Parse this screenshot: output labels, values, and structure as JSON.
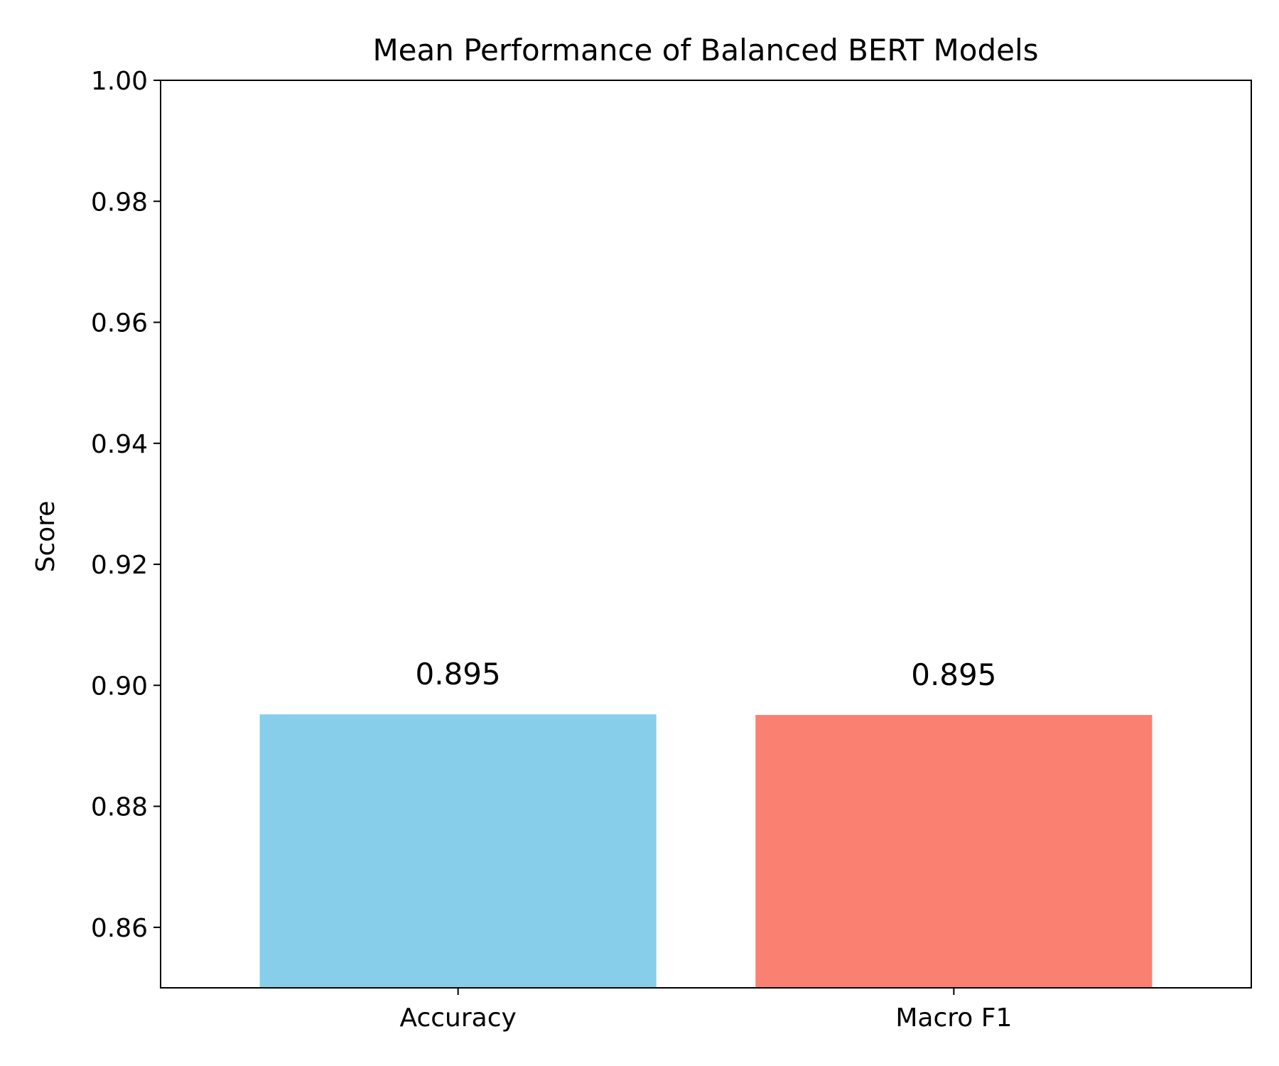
{
  "chart_data": {
    "type": "bar",
    "title": "Mean Performance of Balanced BERT Models",
    "xlabel": "",
    "ylabel": "Score",
    "categories": [
      "Accuracy",
      "Macro F1"
    ],
    "values": [
      0.8952,
      0.8951
    ],
    "data_labels": [
      "0.895",
      "0.895"
    ],
    "bar_colors": [
      "#87CEEB",
      "#FA8072"
    ],
    "ylim": [
      0.85,
      1.0
    ],
    "yticks": [
      0.86,
      0.88,
      0.9,
      0.92,
      0.94,
      0.96,
      0.98,
      1.0
    ],
    "ytick_labels": [
      "0.86",
      "0.88",
      "0.90",
      "0.92",
      "0.94",
      "0.96",
      "0.98",
      "1.00"
    ],
    "grid": false,
    "legend": "none"
  }
}
